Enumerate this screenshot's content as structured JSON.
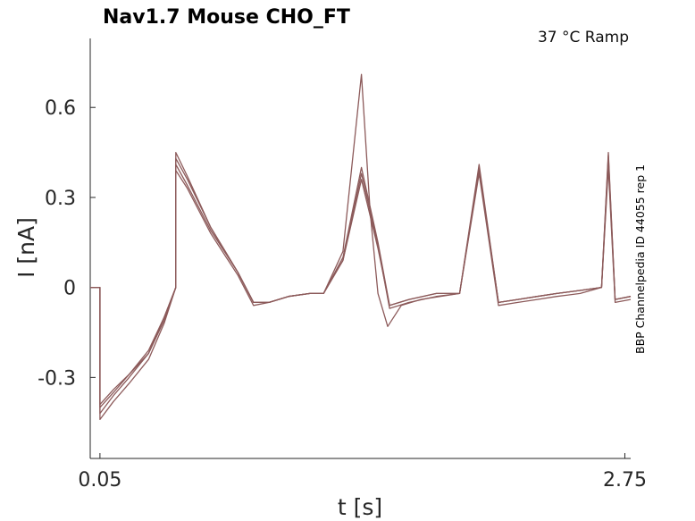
{
  "chart_data": {
    "type": "line",
    "title": "Nav1.7  Mouse  CHO_FT",
    "annotation": "37 °C  Ramp",
    "side_label": "BBP Channelpedia ID 44055 rep 1",
    "xlabel": "t [s]",
    "ylabel": "I [nA]",
    "xlim": [
      0.0,
      2.78
    ],
    "ylim": [
      -0.57,
      0.83
    ],
    "x_ticks": [
      0.05,
      2.75
    ],
    "x_tick_labels": [
      "0.05",
      "2.75"
    ],
    "y_ticks": [
      0.6,
      0.3,
      0,
      -0.3
    ],
    "y_tick_labels": [
      "0.6",
      "0.3",
      "0",
      "-0.3"
    ],
    "color": "#8c5a5a",
    "grid": false,
    "legend": "none",
    "series": [
      {
        "x": [
          0.0,
          0.02,
          0.05,
          0.05,
          0.12,
          0.2,
          0.3,
          0.38,
          0.44,
          0.44,
          0.5,
          0.62,
          0.76,
          0.84,
          0.92,
          1.02,
          1.13,
          1.2,
          1.3,
          1.395,
          1.48,
          1.54,
          1.64,
          1.78,
          1.9,
          2.0,
          2.1,
          2.2,
          2.3,
          2.4,
          2.52,
          2.63,
          2.665,
          2.7,
          2.78
        ],
        "y": [
          0.0,
          0.0,
          0.0,
          -0.39,
          -0.34,
          -0.29,
          -0.21,
          -0.1,
          0.0,
          0.43,
          0.36,
          0.2,
          0.05,
          -0.05,
          -0.05,
          -0.03,
          -0.02,
          -0.02,
          0.1,
          0.4,
          0.15,
          -0.06,
          -0.04,
          -0.02,
          -0.02,
          0.4,
          -0.05,
          -0.04,
          -0.03,
          -0.02,
          -0.01,
          0.0,
          0.45,
          -0.04,
          -0.03
        ]
      },
      {
        "x": [
          0.0,
          0.02,
          0.05,
          0.05,
          0.12,
          0.2,
          0.3,
          0.38,
          0.44,
          0.44,
          0.5,
          0.62,
          0.76,
          0.84,
          0.92,
          1.02,
          1.13,
          1.2,
          1.3,
          1.395,
          1.48,
          1.54,
          1.64,
          1.78,
          1.9,
          2.0,
          2.1,
          2.2,
          2.3,
          2.4,
          2.52,
          2.63,
          2.665,
          2.7,
          2.78
        ],
        "y": [
          0.0,
          0.0,
          0.0,
          -0.42,
          -0.36,
          -0.3,
          -0.22,
          -0.11,
          0.0,
          0.41,
          0.34,
          0.19,
          0.05,
          -0.05,
          -0.05,
          -0.03,
          -0.02,
          -0.02,
          0.09,
          0.36,
          0.13,
          -0.06,
          -0.04,
          -0.02,
          -0.02,
          0.39,
          -0.05,
          -0.04,
          -0.03,
          -0.02,
          -0.01,
          0.0,
          0.42,
          -0.04,
          -0.03
        ]
      },
      {
        "x": [
          0.0,
          0.02,
          0.05,
          0.05,
          0.12,
          0.2,
          0.3,
          0.38,
          0.44,
          0.44,
          0.5,
          0.62,
          0.76,
          0.84,
          0.92,
          1.02,
          1.13,
          1.2,
          1.3,
          1.395,
          1.48,
          1.54,
          1.64,
          1.78,
          1.9,
          2.0,
          2.1,
          2.2,
          2.3,
          2.4,
          2.52,
          2.63,
          2.665,
          2.7,
          2.78
        ],
        "y": [
          0.0,
          0.0,
          0.0,
          -0.44,
          -0.38,
          -0.32,
          -0.24,
          -0.12,
          0.0,
          0.39,
          0.33,
          0.18,
          0.04,
          -0.06,
          -0.05,
          -0.03,
          -0.02,
          -0.02,
          0.09,
          0.38,
          0.14,
          -0.07,
          -0.05,
          -0.03,
          -0.02,
          0.38,
          -0.06,
          -0.05,
          -0.04,
          -0.03,
          -0.02,
          0.0,
          0.4,
          -0.05,
          -0.04
        ]
      },
      {
        "x": [
          0.0,
          0.02,
          0.05,
          0.05,
          0.12,
          0.2,
          0.3,
          0.38,
          0.44,
          0.44,
          0.5,
          0.62,
          0.76,
          0.84,
          0.92,
          1.02,
          1.13,
          1.2,
          1.3,
          1.395,
          1.44,
          1.48,
          1.53,
          1.6,
          1.7,
          1.8,
          1.9,
          2.0,
          2.1,
          2.2,
          2.3,
          2.4,
          2.52,
          2.63,
          2.665,
          2.7,
          2.78
        ],
        "y": [
          0.0,
          0.0,
          0.0,
          -0.4,
          -0.35,
          -0.29,
          -0.22,
          -0.1,
          0.0,
          0.45,
          0.37,
          0.2,
          0.05,
          -0.05,
          -0.05,
          -0.03,
          -0.02,
          -0.02,
          0.12,
          0.71,
          0.25,
          -0.02,
          -0.13,
          -0.06,
          -0.04,
          -0.03,
          -0.02,
          0.41,
          -0.05,
          -0.04,
          -0.03,
          -0.02,
          -0.01,
          0.0,
          0.44,
          -0.04,
          -0.03
        ]
      }
    ]
  }
}
